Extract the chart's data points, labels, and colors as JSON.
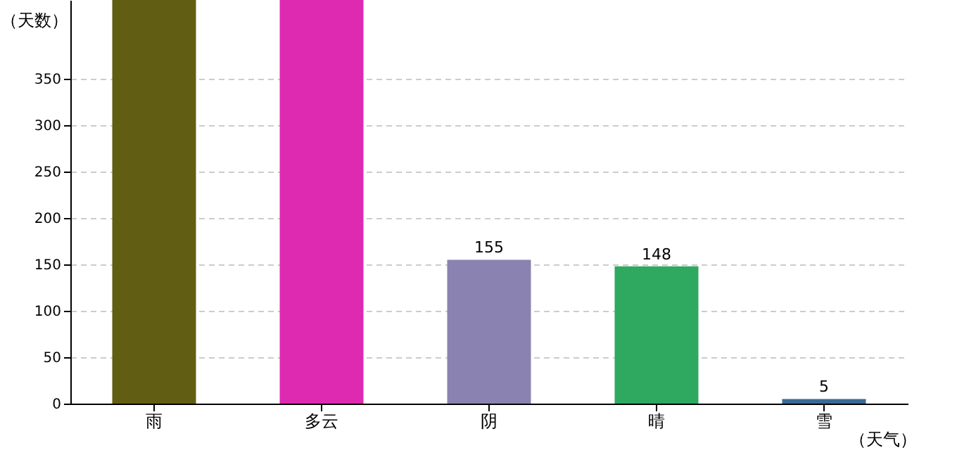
{
  "chart_data": {
    "type": "bar",
    "ylabel": "（天数）",
    "xlabel": "（天气）",
    "categories": [
      "雨",
      "多云",
      "阴",
      "晴",
      "雪"
    ],
    "values": [
      435,
      435,
      155,
      148,
      5
    ],
    "colors": [
      "#615e13",
      "#dd2ab0",
      "#8a82b0",
      "#2fa860",
      "#3a6a96"
    ],
    "value_labels": [
      null,
      null,
      "155",
      "148",
      "5"
    ],
    "ylim": [
      0,
      435
    ],
    "yticks": [
      0,
      50,
      100,
      150,
      200,
      250,
      300,
      350
    ],
    "grid": "y"
  }
}
